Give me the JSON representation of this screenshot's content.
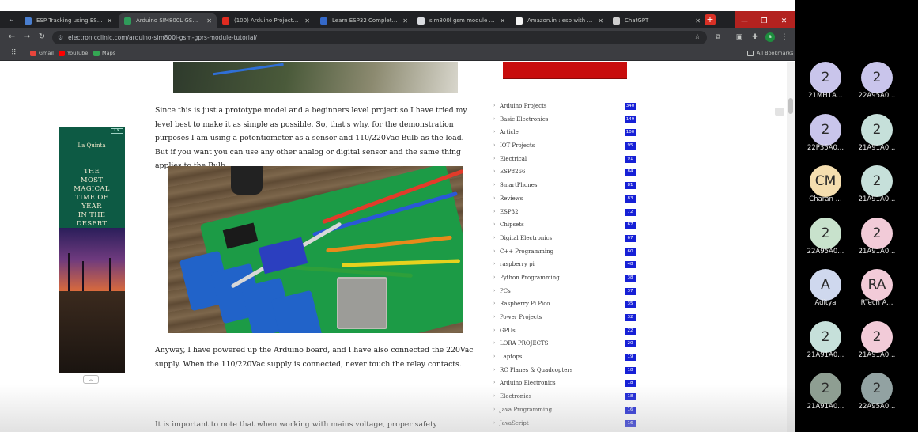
{
  "browser": {
    "tabs": [
      {
        "title": "ESP Tracking using ESP32 and ...",
        "fav_color": "#4a7fd0",
        "active": false
      },
      {
        "title": "Arduino SIM800L GSM GPRS M...",
        "fav_color": "#2f9b5a",
        "active": true
      },
      {
        "title": "(100) Arduino Projects ESP, Iox...",
        "fav_color": "#e02b20",
        "active": false
      },
      {
        "title": "Learn ESP32 Completely, ESP...",
        "fav_color": "#3468c8",
        "active": false
      },
      {
        "title": "sim800l gsm module gsm ...",
        "fav_color": "#dadce0",
        "active": false
      },
      {
        "title": "Amazon.in : esp with gps ...",
        "fav_color": "#f4f4f4",
        "active": false
      },
      {
        "title": "ChatGPT",
        "fav_color": "#cfcfcf",
        "active": false
      }
    ],
    "new_tab": "+",
    "window_controls": {
      "minimize": "—",
      "maximize": "❐",
      "close": "✕"
    },
    "url": "electronicclinic.com/arduino-sim800l-gsm-gprs-module-tutorial/",
    "bookmarks": [
      {
        "label": "Gmail",
        "color": "#e8453c"
      },
      {
        "label": "YouTube",
        "color": "#ff0000"
      },
      {
        "label": "Maps",
        "color": "#34a853"
      }
    ],
    "all_bookmarks": "All Bookmarks",
    "profile_initial": "a"
  },
  "article": {
    "para1": "Since this is just a prototype model and a beginners level project so I have tried my level best to make it as simple as possible. So, that's why, for the demonstration purposes I am using a potentiometer as a sensor and 110/220Vac Bulb as the load. But if you want you can use any other analog or digital sensor and the same thing applies to the Bulb.",
    "para2": "Anyway, I have powered up the Arduino board, and I have also connected the 220Vac supply. When the 110/220Vac supply is connected, never touch the relay contacts.",
    "para3": "It is important to note that when working with mains voltage, proper safety precautions should"
  },
  "categories": [
    {
      "label": "Arduino Projects",
      "count": "340"
    },
    {
      "label": "Basic Electronics",
      "count": "149"
    },
    {
      "label": "Article",
      "count": "100"
    },
    {
      "label": "IOT Projects",
      "count": "95"
    },
    {
      "label": "Electrical",
      "count": "91"
    },
    {
      "label": "ESP8266",
      "count": "84"
    },
    {
      "label": "SmartPhones",
      "count": "81"
    },
    {
      "label": "Reviews",
      "count": "83"
    },
    {
      "label": "ESP32",
      "count": "72"
    },
    {
      "label": "Chipsets",
      "count": "67"
    },
    {
      "label": "Digital Electronics",
      "count": "67"
    },
    {
      "label": "C++ Programming",
      "count": "60"
    },
    {
      "label": "raspberry pi",
      "count": "48"
    },
    {
      "label": "Python Programming",
      "count": "38"
    },
    {
      "label": "PCs",
      "count": "37"
    },
    {
      "label": "Raspberry Pi Pico",
      "count": "35"
    },
    {
      "label": "Power Projects",
      "count": "32"
    },
    {
      "label": "GPUs",
      "count": "22"
    },
    {
      "label": "LORA PROJECTS",
      "count": "20"
    },
    {
      "label": "Laptops",
      "count": "19"
    },
    {
      "label": "RC Planes & Quadcopters",
      "count": "18"
    },
    {
      "label": "Arduino Electronics",
      "count": "18"
    },
    {
      "label": "Electronics",
      "count": "18"
    },
    {
      "label": "Java Programming",
      "count": "16"
    },
    {
      "label": "JavaScript",
      "count": "16"
    }
  ],
  "ad": {
    "brand": "La Quinta",
    "headline": [
      "THE",
      "MOST",
      "MAGICAL",
      "TIME OF",
      "YEAR",
      "IN THE",
      "DESERT"
    ],
    "badge": "i ✕",
    "collapse": "︿"
  },
  "participants": [
    {
      "initials": "2",
      "name": "21MH1A...",
      "color": "#c9c5eb"
    },
    {
      "initials": "2",
      "name": "22A95A0...",
      "color": "#c9c5eb"
    },
    {
      "initials": "2",
      "name": "22P35A0...",
      "color": "#c9c5eb"
    },
    {
      "initials": "2",
      "name": "21A91A0...",
      "color": "#c6e0da"
    },
    {
      "initials": "CM",
      "name": "Charan ...",
      "color": "#f5deaf"
    },
    {
      "initials": "2",
      "name": "21A91A0...",
      "color": "#c6e0da"
    },
    {
      "initials": "2",
      "name": "22A95A0...",
      "color": "#c8e2cc"
    },
    {
      "initials": "2",
      "name": "21A91A0...",
      "color": "#f2cbd8"
    },
    {
      "initials": "A",
      "name": "Aditya",
      "color": "#cfd8ee"
    },
    {
      "initials": "RA",
      "name": "RTech A...",
      "color": "#f2cbd8"
    },
    {
      "initials": "2",
      "name": "21A91A0...",
      "color": "#c6e0da"
    },
    {
      "initials": "2",
      "name": "21A91A0...",
      "color": "#f2cbd8"
    },
    {
      "initials": "2",
      "name": "21A91A0...",
      "color": "#8e9e92"
    },
    {
      "initials": "2",
      "name": "22A95A0...",
      "color": "#92a2a2"
    }
  ]
}
